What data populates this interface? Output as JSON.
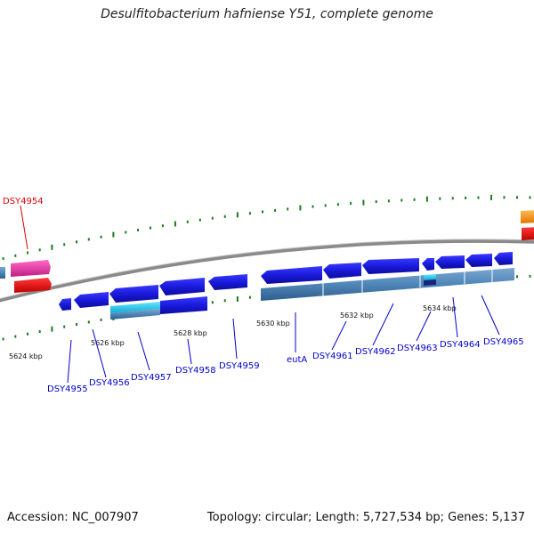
{
  "title": "Desulfitobacterium hafniense Y51, complete genome",
  "footer": {
    "accession": "Accession: NC_007907",
    "summary": "Topology: circular; Length: 5,727,534 bp; Genes: 5,137"
  },
  "colors": {
    "backbone": "#888888",
    "tick": "#1f7a1f",
    "gene_blue": "#1a1adc",
    "gene_light": "#4f86b8",
    "gene_cyan": "#22c8e8",
    "gene_navy": "#1a237e",
    "gene_pink": "#e83ea8",
    "gene_red": "#e81010",
    "gene_orange": "#ff9a18",
    "label_blue": "#0000cc",
    "label_red": "#dd0000"
  },
  "scale_labels": [
    "5624 kbp",
    "5626 kbp",
    "5628 kbp",
    "5630 kbp",
    "5632 kbp",
    "5634 kbp"
  ],
  "gene_labels": [
    {
      "text": "DSY4954",
      "color": "red"
    },
    {
      "text": "DSY4955",
      "color": "blue"
    },
    {
      "text": "DSY4956",
      "color": "blue"
    },
    {
      "text": "DSY4957",
      "color": "blue"
    },
    {
      "text": "DSY4958",
      "color": "blue"
    },
    {
      "text": "DSY4959",
      "color": "blue"
    },
    {
      "text": "eutA",
      "color": "blue"
    },
    {
      "text": "DSY4961",
      "color": "blue"
    },
    {
      "text": "DSY4962",
      "color": "blue"
    },
    {
      "text": "DSY4963",
      "color": "blue"
    },
    {
      "text": "DSY4964",
      "color": "blue"
    },
    {
      "text": "DSY4965",
      "color": "blue"
    }
  ]
}
